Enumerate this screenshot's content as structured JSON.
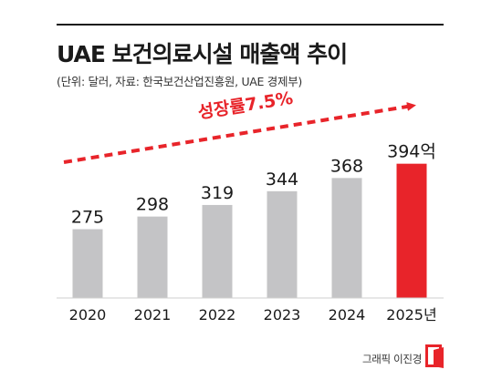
{
  "header": {
    "title": "UAE 보건의료시설 매출액 추이",
    "subtitle": "(단위: 달러, 자료: 한국보건산업진흥원, UAE 경제부)"
  },
  "annotation": {
    "growth_label": "성장률7.5%"
  },
  "credit": {
    "text": "그래픽 이진경"
  },
  "colors": {
    "bar_default": "#c4c4c6",
    "bar_highlight": "#e8242a",
    "accent": "#e8242a"
  },
  "chart_data": {
    "type": "bar",
    "title": "UAE 보건의료시설 매출액 추이",
    "categories": [
      "2020",
      "2021",
      "2022",
      "2023",
      "2024",
      "2025년"
    ],
    "values": [
      275,
      298,
      319,
      344,
      368,
      394
    ],
    "data_labels": [
      "275",
      "298",
      "319",
      "344",
      "368",
      "394억"
    ],
    "highlight_index": 5,
    "ylim": [
      150,
      410
    ],
    "grid": false,
    "legend": "none",
    "xlabel": "",
    "ylabel": ""
  }
}
